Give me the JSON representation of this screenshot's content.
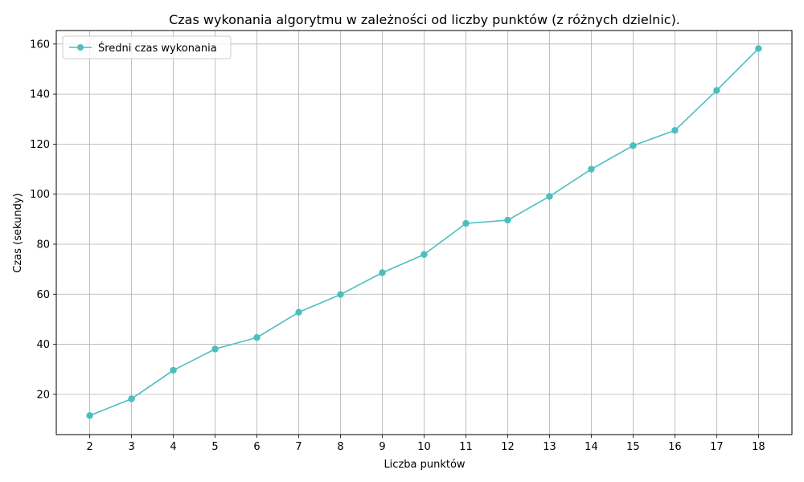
{
  "chart_data": {
    "type": "line",
    "title": "Czas wykonania algorytmu w zależności od liczby punktów (z różnych dzielnic).",
    "xlabel": "Liczba punktów",
    "ylabel": "Czas (sekundy)",
    "x": [
      2,
      3,
      4,
      5,
      6,
      7,
      8,
      9,
      10,
      11,
      12,
      13,
      14,
      15,
      16,
      17,
      18
    ],
    "x_tick_labels": [
      "2",
      "3",
      "4",
      "5",
      "6",
      "7",
      "8",
      "9",
      "10",
      "11",
      "12",
      "13",
      "14",
      "15",
      "16",
      "17",
      "18"
    ],
    "y_ticks": [
      20,
      40,
      60,
      80,
      100,
      120,
      140,
      160
    ],
    "y_tick_labels": [
      "20",
      "40",
      "60",
      "80",
      "100",
      "120",
      "140",
      "160"
    ],
    "xlim": [
      1.2,
      18.8
    ],
    "ylim": [
      3.9,
      165.4
    ],
    "grid": true,
    "legend_position": "top-left",
    "series": [
      {
        "name": "Średni czas wykonania",
        "color": "#4bbfbf",
        "marker": "circle",
        "values": [
          11.5,
          18.2,
          29.6,
          38.1,
          42.7,
          52.8,
          59.9,
          68.6,
          75.9,
          88.3,
          89.6,
          99.1,
          110.0,
          119.4,
          125.5,
          141.5,
          158.2
        ]
      }
    ]
  }
}
